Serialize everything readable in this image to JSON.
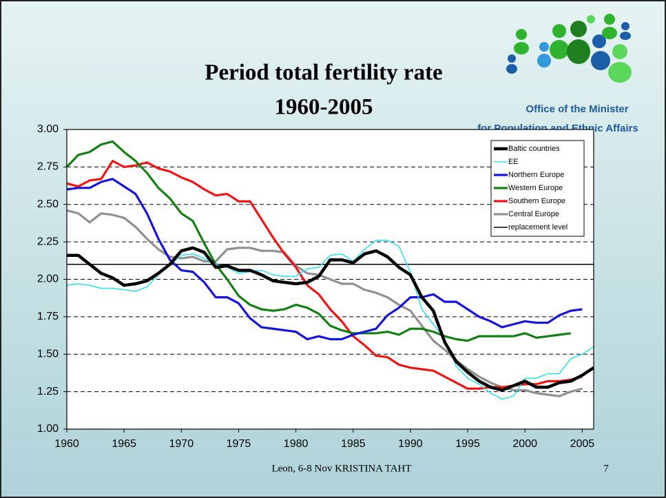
{
  "chart_data": {
    "type": "line",
    "title": [
      "Period total fertility rate",
      "1960-2005"
    ],
    "organization": [
      "Office of the Minister",
      "for Population and Ethnic Affairs"
    ],
    "footer": "Leon, 6-8 Nov KRISTINA TAHT",
    "slide_number": "7",
    "x": [
      1960,
      1961,
      1962,
      1963,
      1964,
      1965,
      1966,
      1967,
      1968,
      1969,
      1970,
      1971,
      1972,
      1973,
      1974,
      1975,
      1976,
      1977,
      1978,
      1979,
      1980,
      1981,
      1982,
      1983,
      1984,
      1985,
      1986,
      1987,
      1988,
      1989,
      1990,
      1991,
      1992,
      1993,
      1994,
      1995,
      1996,
      1997,
      1998,
      1999,
      2000,
      2001,
      2002,
      2003,
      2004,
      2005,
      2006
    ],
    "xlim": [
      1960,
      2006
    ],
    "xticks": [
      1960,
      1965,
      1970,
      1975,
      1980,
      1985,
      1990,
      1995,
      2000,
      2005
    ],
    "ylim": [
      1,
      3
    ],
    "yticks": [
      {
        "value": 1,
        "label": "1.00"
      },
      {
        "value": 1.25,
        "label": "1.25"
      },
      {
        "value": 1.5,
        "label": "1.50"
      },
      {
        "value": 1.75,
        "label": "1.75"
      },
      {
        "value": 2,
        "label": "2.00"
      },
      {
        "value": 2.25,
        "label": "2.25"
      },
      {
        "value": 2.5,
        "label": "2.50"
      },
      {
        "value": 2.75,
        "label": "2.75"
      },
      {
        "value": 3,
        "label": "3.00"
      }
    ],
    "grid": true,
    "legend": "top-right",
    "series": [
      {
        "name": "Baltic countries",
        "color": "#000000",
        "values": [
          2.16,
          2.16,
          2.1,
          2.04,
          2.01,
          1.96,
          1.97,
          1.99,
          2.04,
          2.1,
          2.19,
          2.21,
          2.18,
          2.08,
          2.09,
          2.06,
          2.06,
          2.03,
          1.99,
          1.98,
          1.97,
          1.98,
          2.02,
          2.13,
          2.13,
          2.11,
          2.17,
          2.19,
          2.15,
          2.08,
          2.03,
          1.88,
          1.79,
          1.58,
          1.45,
          1.38,
          1.32,
          1.28,
          1.26,
          1.29,
          1.32,
          1.28,
          1.28,
          1.31,
          1.32,
          1.36,
          1.41
        ]
      },
      {
        "name": "EE",
        "color": "#33e0f0",
        "values": [
          1.96,
          1.97,
          1.96,
          1.94,
          1.94,
          1.93,
          1.92,
          1.95,
          2.03,
          2.1,
          2.16,
          2.17,
          2.14,
          2.1,
          2.08,
          2.04,
          2.05,
          2.06,
          2.03,
          2.02,
          2.02,
          2.07,
          2.08,
          2.16,
          2.17,
          2.12,
          2.2,
          2.26,
          2.26,
          2.22,
          2.05,
          1.8,
          1.7,
          1.6,
          1.42,
          1.34,
          1.3,
          1.24,
          1.2,
          1.22,
          1.34,
          1.34,
          1.37,
          1.37,
          1.47,
          1.5,
          1.55
        ]
      },
      {
        "name": "Northern Europe",
        "color": "#1414dc",
        "values": [
          2.6,
          2.61,
          2.61,
          2.65,
          2.67,
          2.62,
          2.57,
          2.44,
          2.27,
          2.13,
          2.06,
          2.05,
          1.98,
          1.88,
          1.88,
          1.84,
          1.74,
          1.68,
          1.67,
          1.66,
          1.65,
          1.6,
          1.62,
          1.6,
          1.6,
          1.63,
          1.65,
          1.67,
          1.76,
          1.81,
          1.88,
          1.88,
          1.9,
          1.85,
          1.85,
          1.8,
          1.75,
          1.72,
          1.68,
          1.7,
          1.72,
          1.71,
          1.71,
          1.76,
          1.79,
          1.8,
          null
        ]
      },
      {
        "name": "Western Europe",
        "color": "#128012",
        "values": [
          2.75,
          2.83,
          2.85,
          2.9,
          2.92,
          2.85,
          2.79,
          2.71,
          2.61,
          2.54,
          2.44,
          2.39,
          2.24,
          2.1,
          2.0,
          1.89,
          1.83,
          1.8,
          1.79,
          1.8,
          1.83,
          1.81,
          1.77,
          1.69,
          1.66,
          1.64,
          1.64,
          1.64,
          1.65,
          1.63,
          1.67,
          1.67,
          1.65,
          1.62,
          1.6,
          1.59,
          1.62,
          1.62,
          1.62,
          1.62,
          1.64,
          1.61,
          1.62,
          1.63,
          1.64,
          null,
          null
        ]
      },
      {
        "name": "Southern Europe",
        "color": "#f01414",
        "values": [
          2.64,
          2.62,
          2.66,
          2.67,
          2.79,
          2.75,
          2.76,
          2.78,
          2.74,
          2.72,
          2.68,
          2.65,
          2.6,
          2.56,
          2.57,
          2.52,
          2.52,
          2.4,
          2.28,
          2.17,
          2.08,
          1.96,
          1.9,
          1.8,
          1.72,
          1.62,
          1.56,
          1.49,
          1.48,
          1.43,
          1.41,
          1.4,
          1.39,
          1.35,
          1.31,
          1.27,
          1.27,
          1.28,
          1.28,
          1.29,
          1.3,
          1.3,
          1.32,
          1.32,
          1.33,
          1.35,
          null
        ]
      },
      {
        "name": "Central Europe",
        "color": "#909090",
        "values": [
          2.46,
          2.44,
          2.38,
          2.44,
          2.43,
          2.41,
          2.35,
          2.27,
          2.2,
          2.15,
          2.14,
          2.15,
          2.12,
          2.12,
          2.2,
          2.21,
          2.21,
          2.19,
          2.19,
          2.18,
          2.09,
          2.04,
          2.03,
          2.0,
          1.97,
          1.97,
          1.93,
          1.91,
          1.88,
          1.83,
          1.79,
          1.69,
          1.59,
          1.53,
          1.46,
          1.4,
          1.35,
          1.31,
          1.28,
          1.26,
          1.26,
          1.24,
          1.23,
          1.22,
          1.25,
          1.27,
          null
        ]
      }
    ],
    "reference_lines": [
      {
        "name": "replacement level",
        "value": 2.1,
        "color": "#000000"
      }
    ]
  }
}
